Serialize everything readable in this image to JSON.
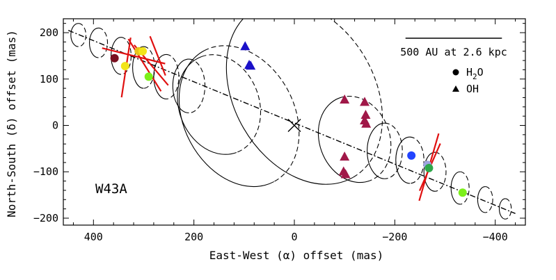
{
  "chart_data": {
    "type": "scatter",
    "title": "",
    "panel_label": "W43A",
    "xlabel": "East-West (α) offset (mas)",
    "ylabel": "North-South (δ) offset (mas)",
    "xlim": [
      460,
      -460
    ],
    "ylim": [
      -215,
      230
    ],
    "x_ticks": [
      400,
      200,
      0,
      -200,
      -400
    ],
    "x_tick_labels": [
      "400",
      "200",
      "0",
      "−200",
      "−400"
    ],
    "y_ticks": [
      200,
      100,
      0,
      -100,
      -200
    ],
    "y_tick_labels": [
      "200",
      "100",
      "0",
      "−100",
      "−200"
    ],
    "scale_bar": {
      "label": "500 AU at 2.6 kpc",
      "length_mas": 192
    },
    "legend": [
      {
        "marker": "circle",
        "label_main": "H",
        "label_sub": "2",
        "label_end": "O"
      },
      {
        "marker": "triangle",
        "label_main": "OH",
        "label_sub": "",
        "label_end": ""
      }
    ],
    "center_marker": {
      "x": 0,
      "y": 0,
      "label": "X"
    },
    "jet_axis": {
      "from": [
        450,
        205
      ],
      "to": [
        -440,
        -190
      ]
    },
    "series": [
      {
        "name": "H2O",
        "marker": "circle",
        "points": [
          {
            "x": 358,
            "y": 145,
            "color": "#7a1020"
          },
          {
            "x": 337,
            "y": 128,
            "color": "#f2e41a"
          },
          {
            "x": 310,
            "y": 160,
            "color": "#e8c21a"
          },
          {
            "x": 302,
            "y": 160,
            "color": "#f2e41a"
          },
          {
            "x": 290,
            "y": 105,
            "color": "#7cf01a"
          },
          {
            "x": -233,
            "y": -65,
            "color": "#2244ff"
          },
          {
            "x": -265,
            "y": -85,
            "color": "#9fa4e0"
          },
          {
            "x": -268,
            "y": -92,
            "color": "#2ea84a"
          },
          {
            "x": -335,
            "y": -145,
            "color": "#7cf01a"
          }
        ]
      },
      {
        "name": "OH",
        "marker": "triangle",
        "points": [
          {
            "x": 98,
            "y": 170,
            "color": "#1a10c8"
          },
          {
            "x": 90,
            "y": 130,
            "color": "#1a10c8"
          },
          {
            "x": 87,
            "y": 128,
            "color": "#1a10c8"
          },
          {
            "x": -100,
            "y": 55,
            "color": "#a01848"
          },
          {
            "x": -140,
            "y": 50,
            "color": "#a01848"
          },
          {
            "x": -142,
            "y": 22,
            "color": "#a01848"
          },
          {
            "x": -140,
            "y": 10,
            "color": "#a01848"
          },
          {
            "x": -143,
            "y": 3,
            "color": "#a01848"
          },
          {
            "x": -100,
            "y": -68,
            "color": "#a01848"
          },
          {
            "x": -98,
            "y": -100,
            "color": "#a01848"
          },
          {
            "x": -102,
            "y": -106,
            "color": "#a01848"
          }
        ]
      }
    ],
    "polarization_vectors": {
      "color": "#e01010",
      "vectors": [
        {
          "x": 335,
          "y": 125,
          "angle_deg": 8,
          "half_length_mas": 65
        },
        {
          "x": 320,
          "y": 150,
          "angle_deg": -75,
          "half_length_mas": 65
        },
        {
          "x": 298,
          "y": 130,
          "angle_deg": -30,
          "half_length_mas": 65
        },
        {
          "x": 285,
          "y": 130,
          "angle_deg": -38,
          "half_length_mas": 55
        },
        {
          "x": 272,
          "y": 150,
          "angle_deg": -20,
          "half_length_mas": 45
        },
        {
          "x": -268,
          "y": -90,
          "angle_deg": 15,
          "half_length_mas": 75
        },
        {
          "x": -270,
          "y": -90,
          "angle_deg": 22,
          "half_length_mas": 55
        }
      ]
    },
    "precessing_jet_model": {
      "description": "Ellipses along the jet axis; solid = approaching half, dashed = receding half.",
      "ellipses": [
        {
          "x": 430,
          "y": 195,
          "semi_x_mas": 15,
          "semi_y_mas": 25,
          "angle_deg": 0
        },
        {
          "x": 390,
          "y": 178,
          "semi_x_mas": 18,
          "semi_y_mas": 32,
          "angle_deg": 0
        },
        {
          "x": 345,
          "y": 150,
          "semi_x_mas": 20,
          "semi_y_mas": 40,
          "angle_deg": 0
        },
        {
          "x": 300,
          "y": 125,
          "semi_x_mas": 22,
          "semi_y_mas": 45,
          "angle_deg": 0
        },
        {
          "x": 255,
          "y": 105,
          "semi_x_mas": 25,
          "semi_y_mas": 48,
          "angle_deg": 0
        },
        {
          "x": 210,
          "y": 85,
          "semi_x_mas": 32,
          "semi_y_mas": 58,
          "angle_deg": 0
        },
        {
          "x": 150,
          "y": 45,
          "semi_x_mas": 80,
          "semi_y_mas": 110,
          "angle_deg": 20
        },
        {
          "x": 110,
          "y": 20,
          "semi_x_mas": 110,
          "semi_y_mas": 160,
          "angle_deg": 28
        },
        {
          "x": -20,
          "y": 70,
          "semi_x_mas": 140,
          "semi_y_mas": 210,
          "angle_deg": 30
        },
        {
          "x": -120,
          "y": -30,
          "semi_x_mas": 70,
          "semi_y_mas": 95,
          "angle_deg": 20
        },
        {
          "x": -180,
          "y": -55,
          "semi_x_mas": 35,
          "semi_y_mas": 60,
          "angle_deg": 0
        },
        {
          "x": -230,
          "y": -75,
          "semi_x_mas": 28,
          "semi_y_mas": 50,
          "angle_deg": 0
        },
        {
          "x": -280,
          "y": -100,
          "semi_x_mas": 22,
          "semi_y_mas": 42,
          "angle_deg": 0
        },
        {
          "x": -330,
          "y": -135,
          "semi_x_mas": 18,
          "semi_y_mas": 35,
          "angle_deg": 0
        },
        {
          "x": -380,
          "y": -160,
          "semi_x_mas": 15,
          "semi_y_mas": 28,
          "angle_deg": 0
        },
        {
          "x": -420,
          "y": -180,
          "semi_x_mas": 12,
          "semi_y_mas": 22,
          "angle_deg": 0
        }
      ]
    }
  }
}
